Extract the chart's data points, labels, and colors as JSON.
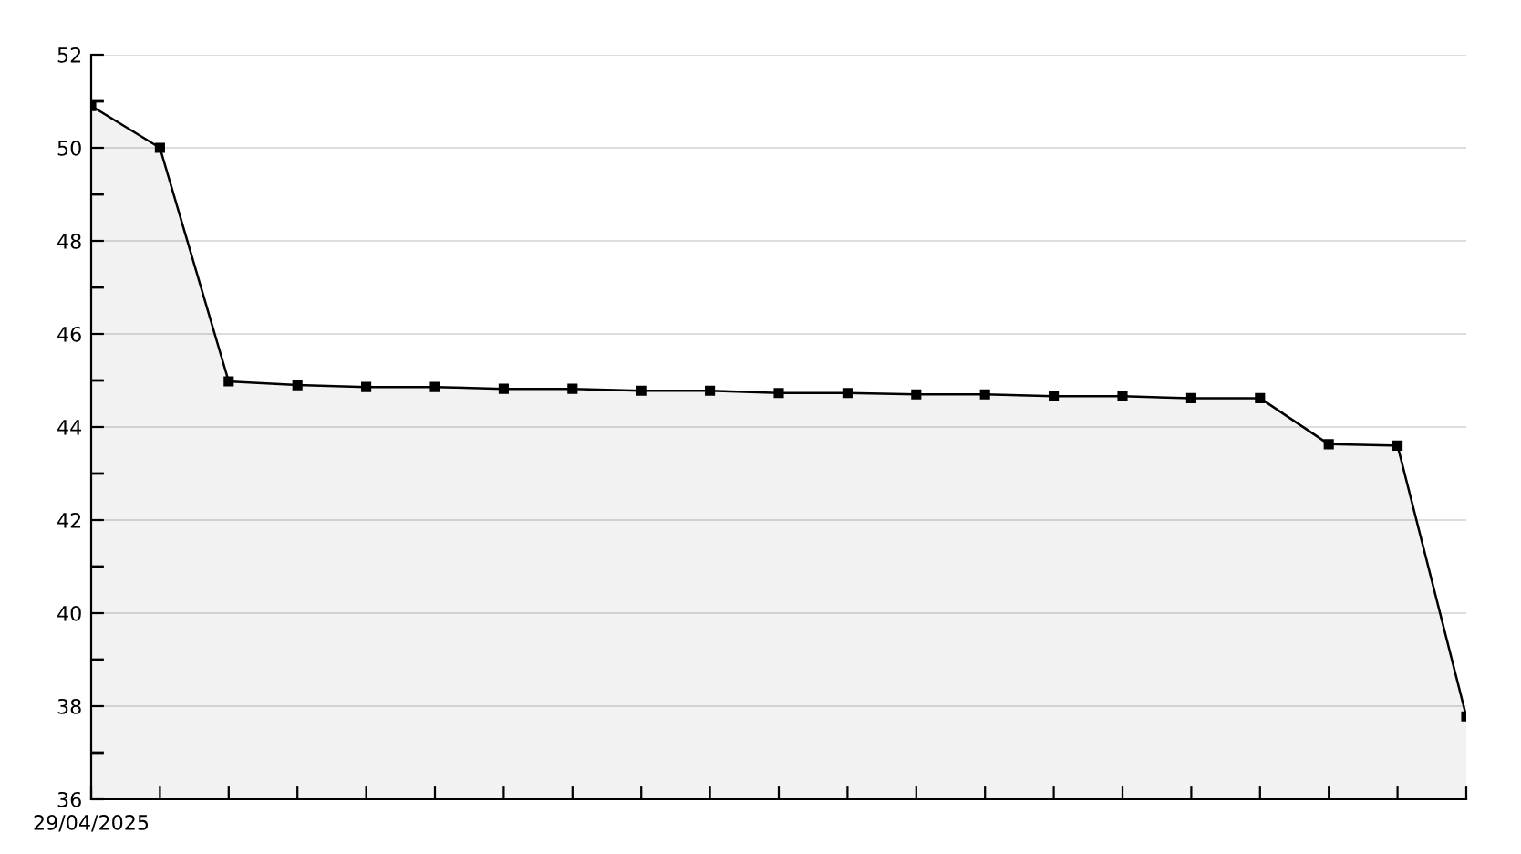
{
  "chart_data": {
    "type": "area",
    "categories": [
      "29/04/2025",
      null,
      null,
      null,
      null,
      null,
      null,
      null,
      null,
      null,
      null,
      null,
      null,
      null,
      null,
      null,
      null,
      null,
      null,
      null,
      null
    ],
    "series": [
      {
        "color": "#000000",
        "values": [
          50.9,
          50.0,
          44.98,
          44.9,
          44.86,
          44.86,
          44.82,
          44.82,
          44.78,
          44.78,
          44.73,
          44.73,
          44.7,
          44.7,
          44.66,
          44.66,
          44.62,
          44.62,
          43.63,
          43.6,
          37.78
        ]
      }
    ],
    "ylim": [
      36,
      52
    ],
    "yticks": [
      36,
      {
        "value": 37,
        "label": null
      },
      38,
      {
        "value": 39,
        "label": null
      },
      40,
      {
        "value": 41,
        "label": null
      },
      42,
      {
        "value": 43,
        "label": null
      },
      44,
      {
        "value": 45,
        "label": null
      },
      46,
      {
        "value": 47,
        "label": null
      },
      48,
      {
        "value": 49,
        "label": null
      },
      50,
      {
        "value": 51,
        "label": null
      },
      52
    ],
    "grid": "y",
    "marker": "square",
    "line_style": "solid",
    "legend": false
  }
}
